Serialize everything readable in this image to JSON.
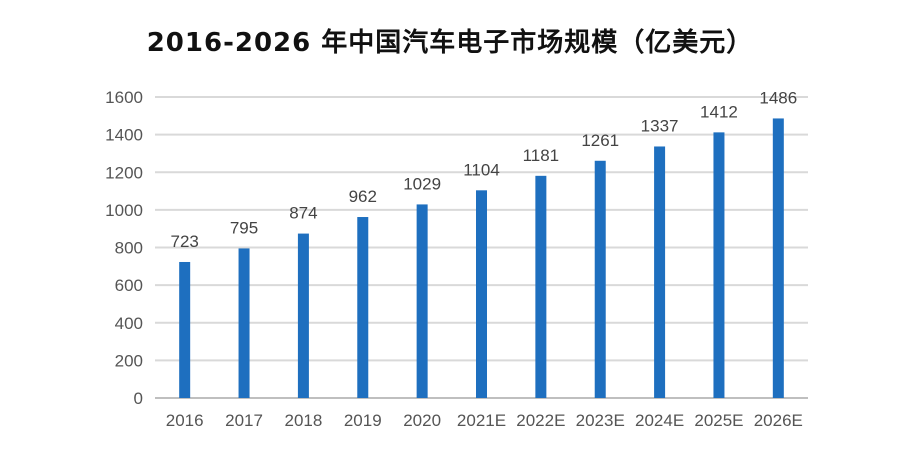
{
  "chart_data": {
    "type": "bar",
    "title": "2016-2026 年中国汽车电子市场规模（亿美元）",
    "xlabel": "",
    "ylabel": "",
    "categories": [
      "2016",
      "2017",
      "2018",
      "2019",
      "2020",
      "2021E",
      "2022E",
      "2023E",
      "2024E",
      "2025E",
      "2026E"
    ],
    "values": [
      723,
      795,
      874,
      962,
      1029,
      1104,
      1181,
      1261,
      1337,
      1412,
      1486
    ],
    "ylim": [
      0,
      1600
    ],
    "yticks": [
      0,
      200,
      400,
      600,
      800,
      1000,
      1200,
      1400,
      1600
    ],
    "grid": true,
    "legend": "none",
    "data_labels": true,
    "colors": {
      "bar": "#1E6FBF",
      "grid": "#D9D9D9",
      "text": "#555555"
    }
  }
}
